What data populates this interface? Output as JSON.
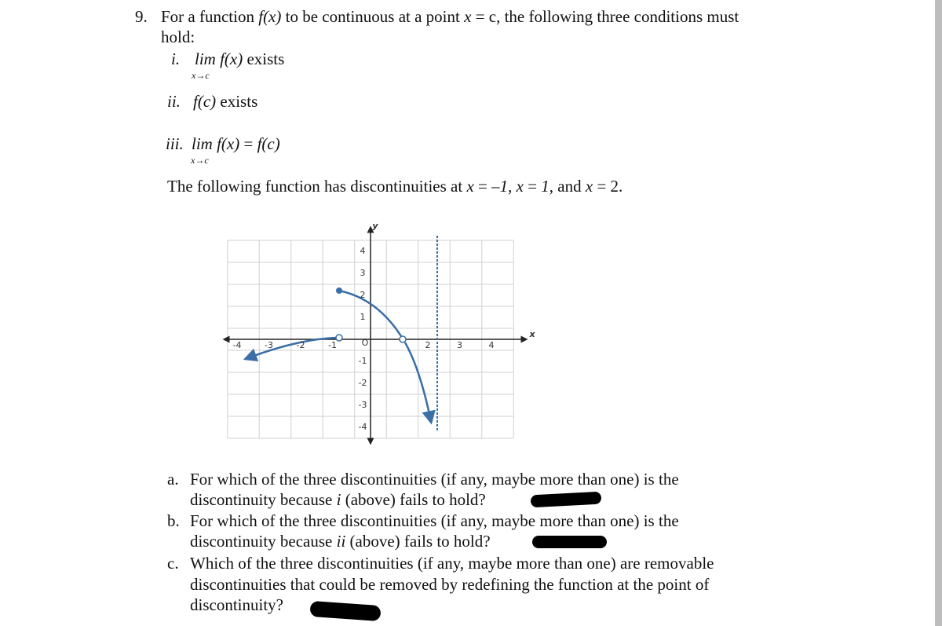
{
  "question": {
    "number": "9.",
    "intro_line1": [
      {
        "t": "For a function "
      },
      {
        "t": "f(x)",
        "i": true
      },
      {
        "t": " to be continuous at a point "
      },
      {
        "t": "x",
        "i": true
      },
      {
        "t": " = c, the following three conditions must"
      }
    ],
    "intro_line2": [
      {
        "t": "hold:"
      }
    ],
    "conditions": [
      {
        "label": "i.",
        "segments": [
          {
            "t": "lim f(x)",
            "i": true
          },
          {
            "t": " exists"
          }
        ],
        "subscript": "x→c"
      },
      {
        "label": "ii.",
        "segments": [
          {
            "t": "f(c)",
            "i": true
          },
          {
            "t": " exists"
          }
        ]
      },
      {
        "label": "iii.",
        "segments": [
          {
            "t": "lim f(x)",
            "i": true
          },
          {
            "t": " = "
          },
          {
            "t": "f(c)",
            "i": true
          }
        ],
        "subscript": "x→c"
      }
    ],
    "statement": [
      {
        "t": "The following function has discontinuities at "
      },
      {
        "t": "x",
        "i": true
      },
      {
        "t": " = –"
      },
      {
        "t": "1",
        "i": true
      },
      {
        "t": ", "
      },
      {
        "t": "x",
        "i": true
      },
      {
        "t": " = "
      },
      {
        "t": "1",
        "i": true
      },
      {
        "t": ", and "
      },
      {
        "t": "x",
        "i": true
      },
      {
        "t": " = 2."
      }
    ],
    "graph": {
      "x_axis_label": "x",
      "y_axis_label": "y",
      "origin_label": "O",
      "x_tick_labels": [
        "-4",
        "-3",
        "-2",
        "-1",
        "2",
        "3",
        "4"
      ],
      "y_tick_labels": [
        "4",
        "3",
        "2",
        "1",
        "-1",
        "-2",
        "-3",
        "-4"
      ]
    },
    "parts": [
      {
        "label": "a.",
        "lines": [
          [
            {
              "t": "For which of the three discontinuities (if any, maybe more than one) is the"
            }
          ],
          [
            {
              "t": "discontinuity because "
            },
            {
              "t": "i",
              "i": true
            },
            {
              "t": " (above) fails to hold?"
            }
          ]
        ]
      },
      {
        "label": "b.",
        "lines": [
          [
            {
              "t": "For which of the three discontinuities (if any, maybe more than one) is the"
            }
          ],
          [
            {
              "t": "discontinuity because "
            },
            {
              "t": "ii",
              "i": true
            },
            {
              "t": " (above) fails to hold?"
            }
          ]
        ]
      },
      {
        "label": "c.",
        "lines": [
          [
            {
              "t": "Which of the three discontinuities (if any, maybe more than one) are removable"
            }
          ],
          [
            {
              "t": "discontinuities that could be removed by redefining the function at the point of"
            }
          ],
          [
            {
              "t": "discontinuity?"
            }
          ]
        ]
      }
    ]
  }
}
